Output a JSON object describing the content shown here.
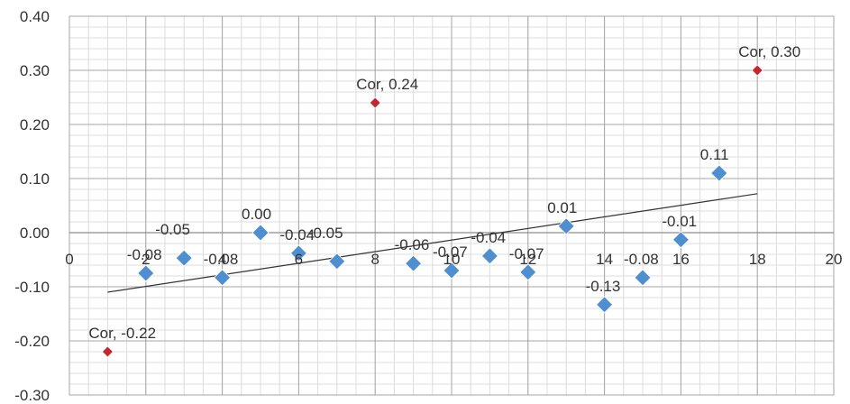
{
  "chart_data": {
    "type": "scatter",
    "title": "",
    "xlabel": "",
    "ylabel": "",
    "xlim": [
      0,
      20
    ],
    "ylim": [
      -0.3,
      0.4
    ],
    "x_major_ticks": [
      0,
      2,
      4,
      6,
      8,
      10,
      12,
      14,
      16,
      18,
      20
    ],
    "y_major_ticks": [
      0.4,
      0.3,
      0.2,
      0.1,
      0.0,
      -0.1,
      -0.2,
      -0.3
    ],
    "x_tick_labels": [
      "0",
      "2",
      "4",
      "6",
      "8",
      "10",
      "12",
      "14",
      "16",
      "18",
      "20"
    ],
    "y_tick_labels": [
      "0.40",
      "0.30",
      "0.20",
      "0.10",
      "0.00",
      "-0.10",
      "-0.20",
      "-0.30"
    ],
    "grid": true,
    "minor_grid": true,
    "legend": "none",
    "series": [
      {
        "marker": "diamond",
        "color": "#4f8fcf",
        "points": [
          {
            "x": 2,
            "y": -0.075,
            "label": "-0.08"
          },
          {
            "x": 3,
            "y": -0.047,
            "label": "-0.05"
          },
          {
            "x": 4,
            "y": -0.083,
            "label": "-0.08"
          },
          {
            "x": 5,
            "y": 0.0,
            "label": "0.00"
          },
          {
            "x": 6,
            "y": -0.038,
            "label": "-0.04"
          },
          {
            "x": 7,
            "y": -0.053,
            "label": "-0.05"
          },
          {
            "x": 9,
            "y": -0.057,
            "label": "-0.06"
          },
          {
            "x": 10,
            "y": -0.07,
            "label": "-0.07"
          },
          {
            "x": 11,
            "y": -0.043,
            "label": "-0.04"
          },
          {
            "x": 12,
            "y": -0.073,
            "label": "-0.07"
          },
          {
            "x": 13,
            "y": 0.012,
            "label": "0.01"
          },
          {
            "x": 14,
            "y": -0.133,
            "label": "-0.13"
          },
          {
            "x": 15,
            "y": -0.083,
            "label": "-0.08"
          },
          {
            "x": 16,
            "y": -0.013,
            "label": "-0.01"
          },
          {
            "x": 17,
            "y": 0.11,
            "label": "0.11"
          }
        ]
      },
      {
        "marker": "diamond",
        "color": "#c8262e",
        "points": [
          {
            "x": 1,
            "y": -0.22,
            "label": "Cor, -0.22"
          },
          {
            "x": 8,
            "y": 0.24,
            "label": "Cor, 0.24"
          },
          {
            "x": 18,
            "y": 0.3,
            "label": "Cor, 0.30"
          }
        ]
      }
    ],
    "trendline": {
      "type": "linear",
      "x": [
        1,
        18
      ],
      "y": [
        -0.11,
        0.072
      ],
      "color": "#333333"
    }
  }
}
